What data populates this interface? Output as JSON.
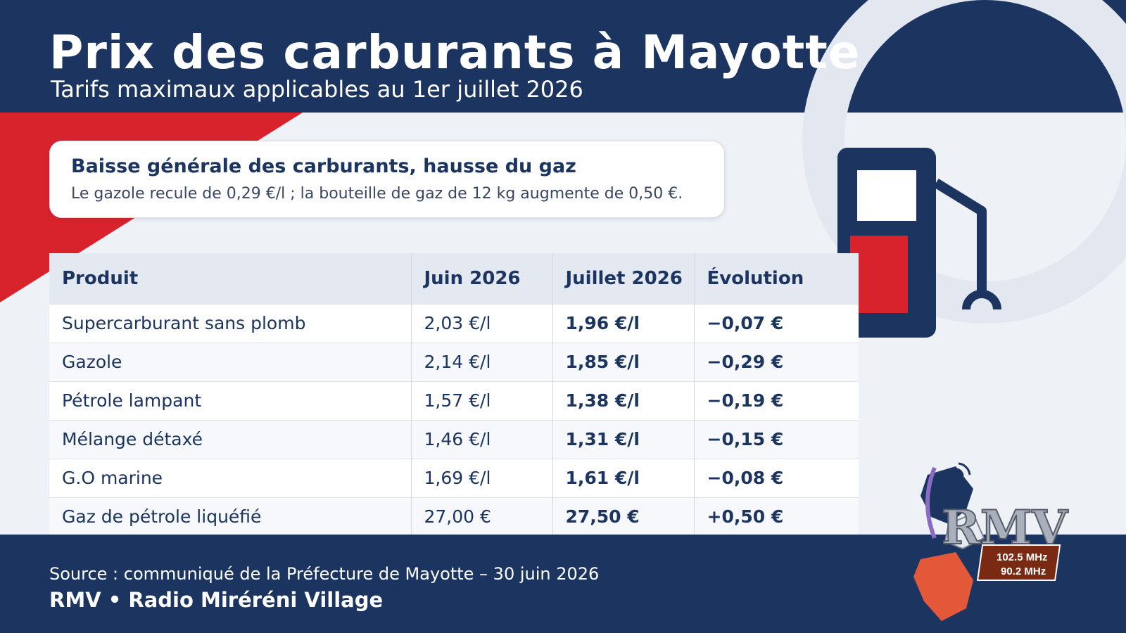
{
  "header": {
    "title": "Prix des carburants à Mayotte",
    "subtitle": "Tarifs maximaux applicables au 1er juillet 2026"
  },
  "callout": {
    "title": "Baisse générale des carburants, hausse du gaz",
    "text": "Le gazole recule de 0,29 €/l ; la bouteille de gaz de 12 kg augmente de 0,50 €."
  },
  "illustration": {
    "icon": "fuel-pump-icon",
    "colors": {
      "navy": "#1b3560",
      "red": "#d8232c"
    }
  },
  "table": {
    "headers": [
      "Produit",
      "Juin 2026",
      "Juillet 2026",
      "Évolution"
    ],
    "rows": [
      {
        "produit": "Supercarburant sans plomb",
        "juin": "2,03 €/l",
        "juillet": "1,96 €/l",
        "evolution": "−0,07 €",
        "trend": "down"
      },
      {
        "produit": "Gazole",
        "juin": "2,14 €/l",
        "juillet": "1,85 €/l",
        "evolution": "−0,29 €",
        "trend": "down"
      },
      {
        "produit": "Pétrole lampant",
        "juin": "1,57 €/l",
        "juillet": "1,38 €/l",
        "evolution": "−0,19 €",
        "trend": "down"
      },
      {
        "produit": "Mélange détaxé",
        "juin": "1,46 €/l",
        "juillet": "1,31 €/l",
        "evolution": "−0,15 €",
        "trend": "down"
      },
      {
        "produit": "G.O marine",
        "juin": "1,69 €/l",
        "juillet": "1,61 €/l",
        "evolution": "−0,08 €",
        "trend": "down"
      },
      {
        "produit": "Gaz de pétrole liquéfié",
        "juin": "27,00 €",
        "juillet": "27,50 €",
        "evolution": "+0,50 €",
        "trend": "up"
      }
    ]
  },
  "footer": {
    "source": "Source : communiqué de la Préfecture de Mayotte – 30 juin 2026",
    "brand": "RMV • Radio Miréréni Village"
  },
  "logo": {
    "letters": "RMV",
    "freq1": "102.5 MHz",
    "freq2": "90.2 MHz"
  },
  "colors": {
    "navy": "#1b3560",
    "red": "#d8232c",
    "decrease": "#1e7a3c",
    "increase": "#c0282b"
  }
}
